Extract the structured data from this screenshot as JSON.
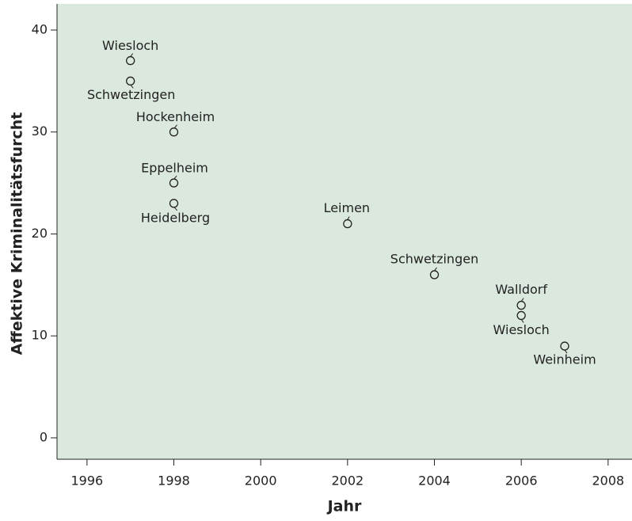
{
  "chart_data": {
    "type": "scatter",
    "x_label": "Jahr",
    "y_label": "Affektive Kriminalitätsfurcht",
    "x": [
      1997,
      1997,
      1998,
      1998,
      1998,
      2002,
      2004,
      2006,
      2006,
      2007
    ],
    "values": [
      37,
      35,
      30,
      25,
      23,
      21,
      16,
      13,
      12,
      9
    ],
    "labels": [
      "Wiesloch",
      "Schwetzingen",
      "Hockenheim",
      "Eppelheim",
      "Heidelberg",
      "Leimen",
      "Schwetzingen",
      "Walldorf",
      "Wiesloch",
      "Weinheim"
    ],
    "xlim": [
      1995.31,
      2008.55
    ],
    "xticks": [
      1996,
      1998,
      2000,
      2002,
      2004,
      2006,
      2008
    ],
    "ylim": [
      -2.1,
      42.56
    ],
    "yticks": [
      0,
      10,
      20,
      30,
      40
    ],
    "color": "#222222",
    "background": "#dbe8de"
  }
}
